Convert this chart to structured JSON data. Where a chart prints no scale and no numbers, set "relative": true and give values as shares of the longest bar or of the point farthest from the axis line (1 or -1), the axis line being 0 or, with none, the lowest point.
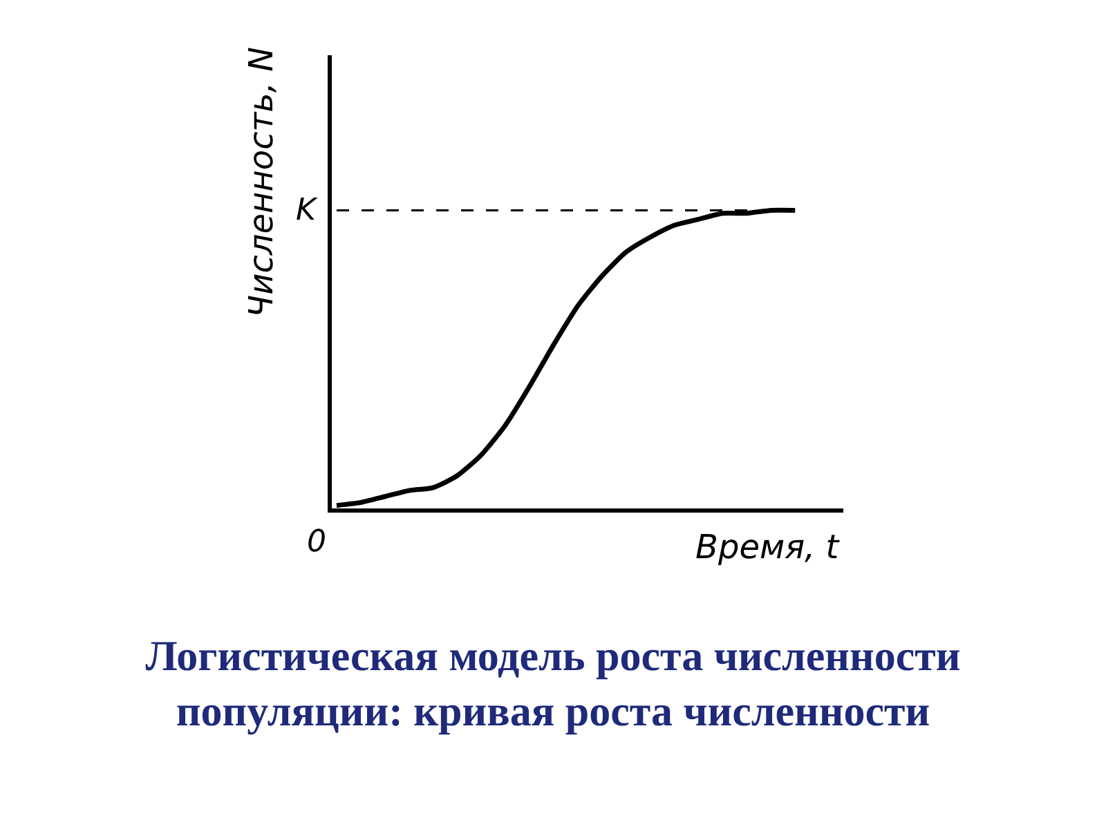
{
  "chart_data": {
    "type": "line",
    "relative": true,
    "title": "Логистическая модель роста численности популяции: кривая роста численности",
    "xlabel": "Время, t",
    "ylabel": "Численность, N",
    "annotations": [
      "0"
    ],
    "categories": [
      null,
      null,
      null,
      null,
      null,
      null,
      null,
      null,
      null,
      null,
      null,
      null,
      null,
      null,
      null,
      null,
      null,
      null,
      null,
      null,
      null,
      null
    ],
    "series": [
      {
        "color": "#000000",
        "values": [
          0.01,
          0.02,
          0.04,
          0.06,
          0.07,
          0.11,
          0.18,
          0.28,
          0.41,
          0.55,
          0.68,
          0.78,
          0.86,
          0.91,
          0.95,
          0.97,
          0.99,
          0.99,
          1.0,
          1.0,
          null,
          null
        ]
      }
    ],
    "ref_lines": [
      {
        "axis": "y",
        "value": 1,
        "label": "K",
        "color": "#000000",
        "line_style": "dashed"
      }
    ],
    "marker": "none",
    "line_style": "solid"
  }
}
